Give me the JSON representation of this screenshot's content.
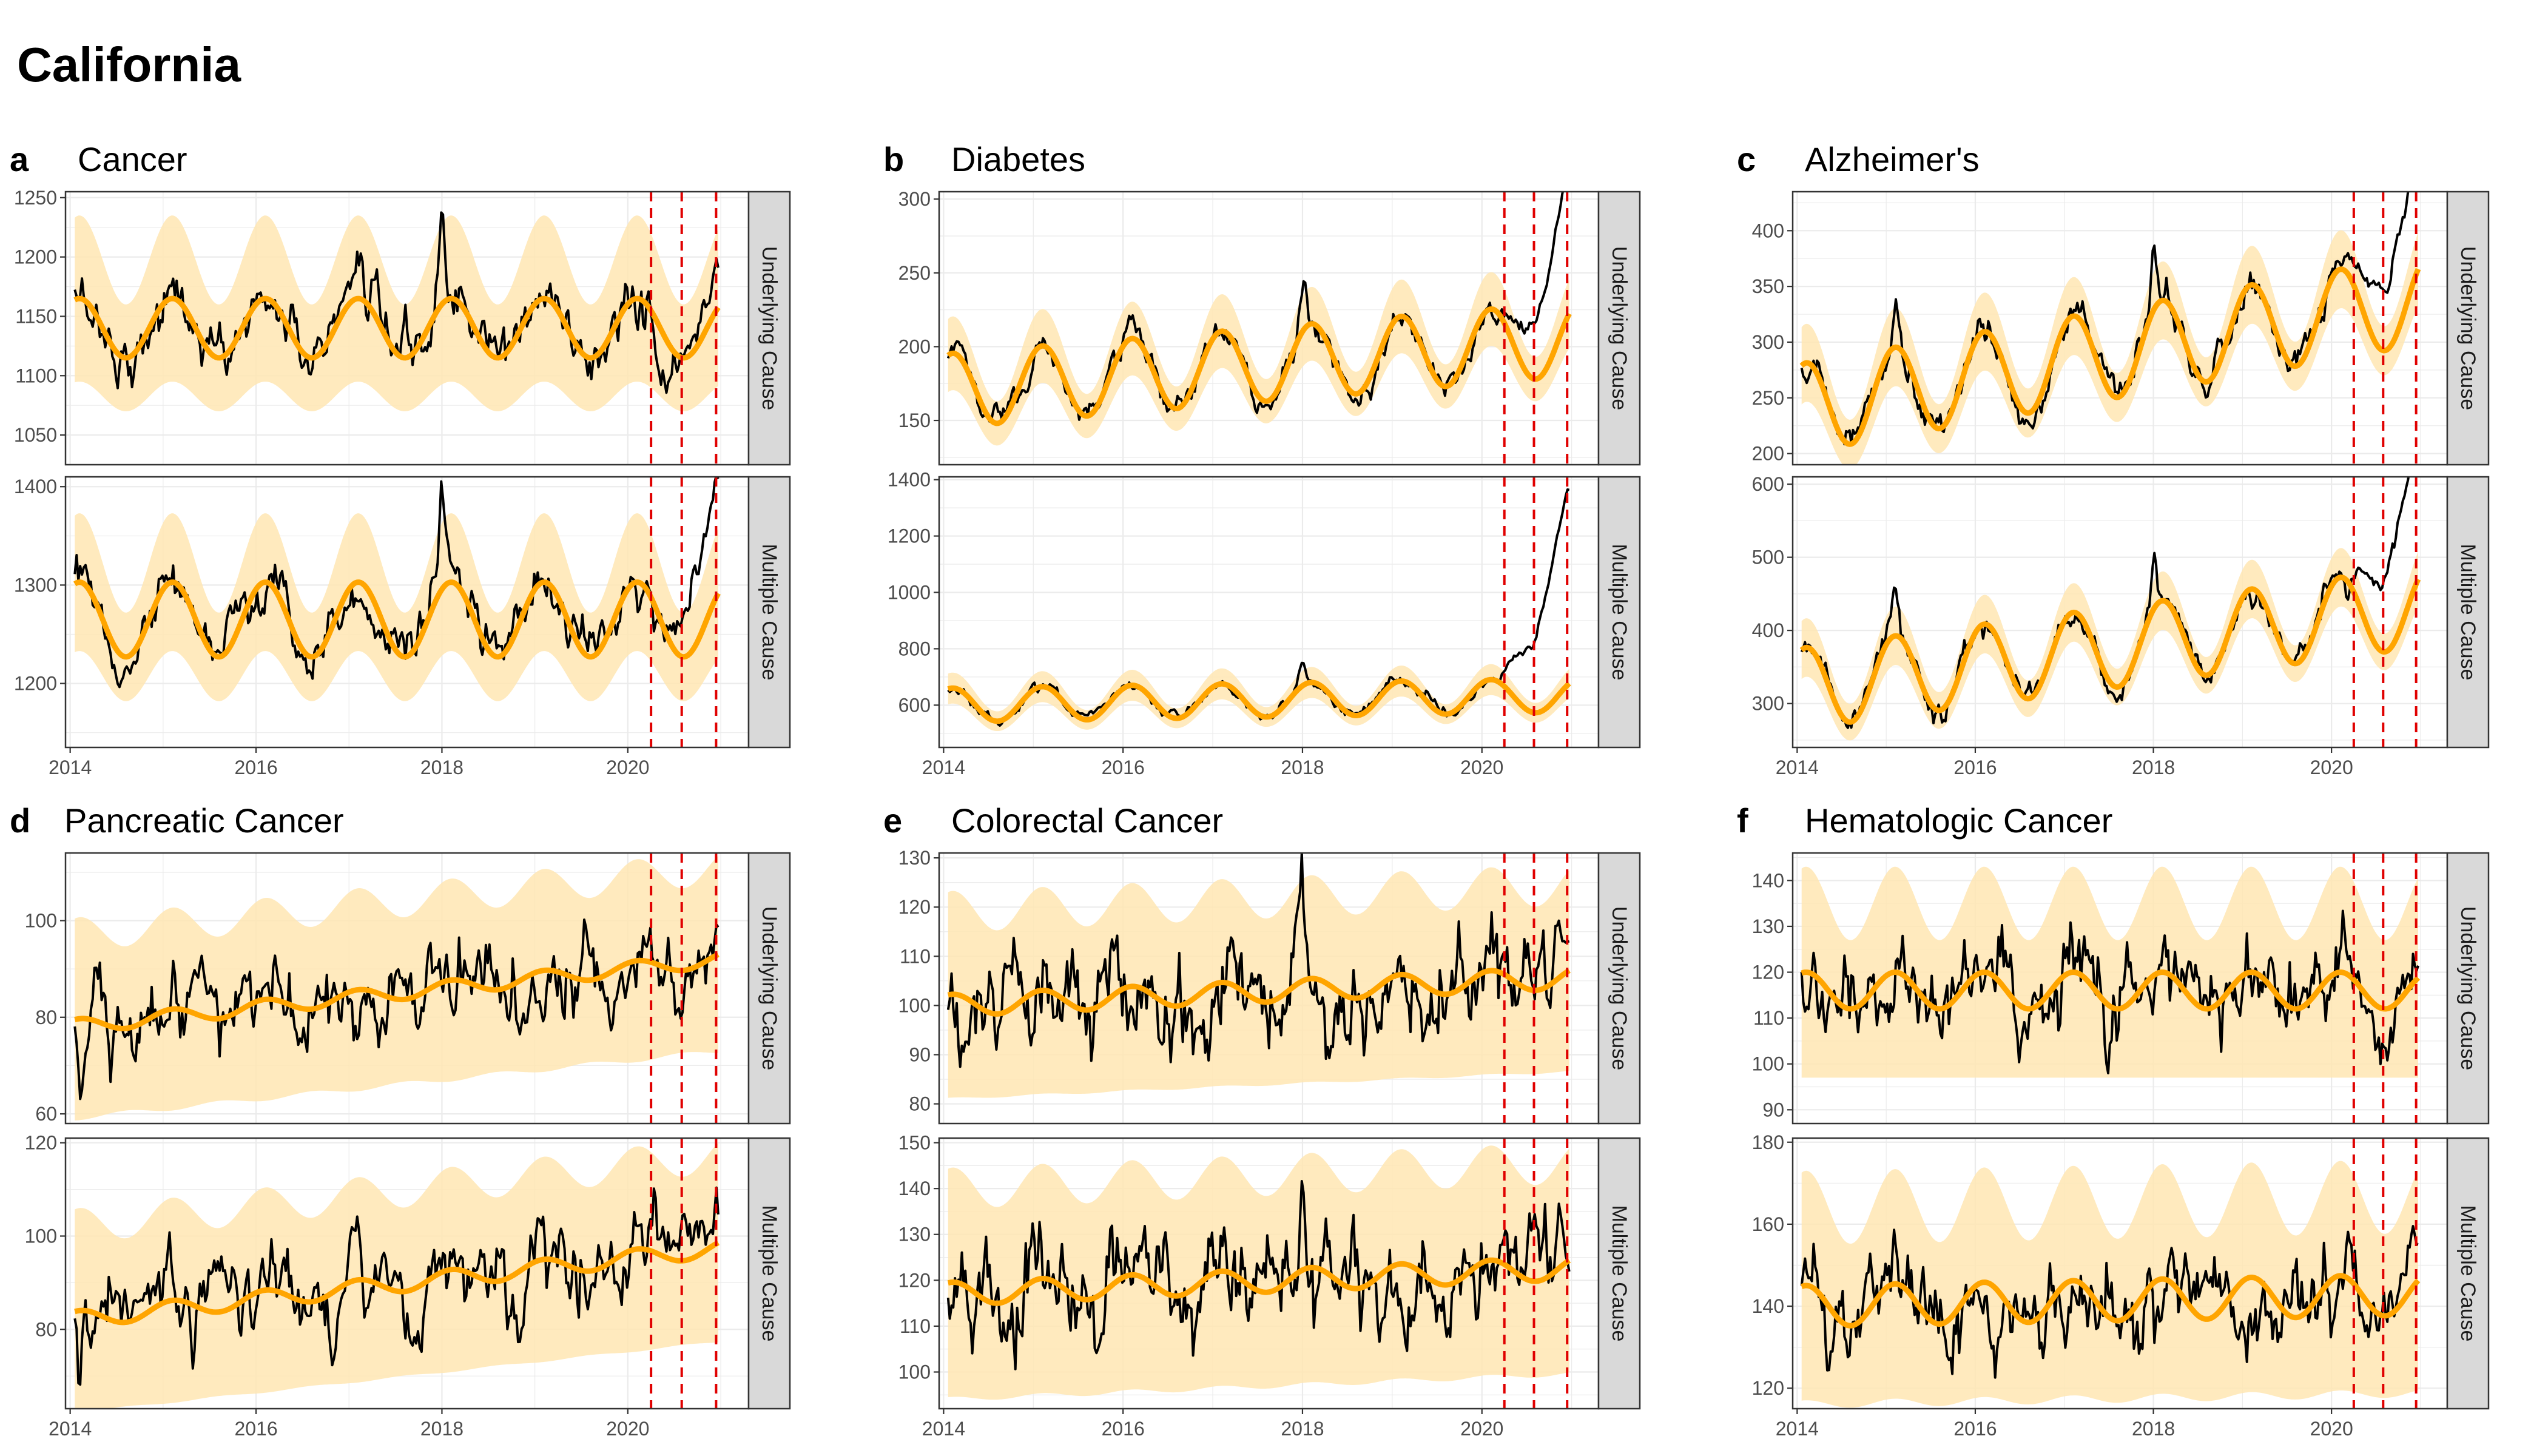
{
  "figure": {
    "title": "California",
    "x_tick_labels": [
      "2014",
      "2016",
      "2018",
      "2020"
    ]
  },
  "colors": {
    "observed": "#000000",
    "expected": "#ffa500",
    "band": "#ffe6b3",
    "vline": "#e00000",
    "strip_bg": "#d9d9d9"
  },
  "chart_data": [
    {
      "letter": "a",
      "title": "Cancer",
      "type": "line",
      "xlim": [
        2013.95,
        2021.3
      ],
      "vlines": [
        2020.25,
        2020.58,
        2020.95
      ],
      "facets": [
        {
          "strip": "Underlying Cause",
          "ylim": [
            1025,
            1255
          ],
          "yticks": [
            1050,
            1100,
            1150,
            1200,
            1250
          ],
          "expected": {
            "base": 1140,
            "trend": 0,
            "amp": 25,
            "phase": 0.1
          },
          "band_half": [
            45,
            70
          ],
          "noise": 12,
          "spikes": [
            [
              2018.0,
              75
            ],
            [
              2017.2,
              -30
            ]
          ],
          "covid_excess": [
            [
              2020.3,
              -40
            ],
            [
              2020.95,
              35
            ]
          ]
        },
        {
          "strip": "Multiple Cause",
          "ylim": [
            1135,
            1410
          ],
          "yticks": [
            1200,
            1300,
            1400
          ],
          "expected": {
            "base": 1265,
            "trend": 0,
            "amp": 38,
            "phase": 0.1
          },
          "band_half": [
            45,
            70
          ],
          "noise": 14,
          "spikes": [
            [
              2018.0,
              95
            ],
            [
              2017.2,
              -40
            ]
          ],
          "covid_excess": [
            [
              2020.3,
              -20
            ],
            [
              2020.95,
              120
            ]
          ]
        }
      ]
    },
    {
      "letter": "b",
      "title": "Diabetes",
      "type": "line",
      "xlim": [
        2013.95,
        2021.3
      ],
      "vlines": [
        2020.25,
        2020.58,
        2020.95
      ],
      "facets": [
        {
          "strip": "Underlying Cause",
          "ylim": [
            120,
            305
          ],
          "yticks": [
            150,
            200,
            250,
            300
          ],
          "expected": {
            "base": 170,
            "trend": 5,
            "amp": 25,
            "phase": 0.1
          },
          "band_half": [
            15,
            25
          ],
          "noise": 5,
          "spikes": [
            [
              2018.0,
              30
            ]
          ],
          "covid_excess": [
            [
              2020.3,
              15
            ],
            [
              2020.58,
              35
            ],
            [
              2020.95,
              95
            ]
          ]
        },
        {
          "strip": "Multiple Cause",
          "ylim": [
            450,
            1410
          ],
          "yticks": [
            600,
            800,
            1000,
            1200,
            1400
          ],
          "expected": {
            "base": 600,
            "trend": 5,
            "amp": 60,
            "phase": 0.1
          },
          "band_half": [
            35,
            55
          ],
          "noise": 10,
          "spikes": [
            [
              2018.0,
              80
            ]
          ],
          "covid_excess": [
            [
              2020.3,
              120
            ],
            [
              2020.58,
              250
            ],
            [
              2020.95,
              700
            ]
          ]
        }
      ]
    },
    {
      "letter": "c",
      "title": "Alzheimer's",
      "type": "line",
      "xlim": [
        2013.95,
        2021.3
      ],
      "vlines": [
        2020.25,
        2020.58,
        2020.95
      ],
      "facets": [
        {
          "strip": "Underlying Cause",
          "ylim": [
            190,
            435
          ],
          "yticks": [
            200,
            250,
            300,
            350,
            400
          ],
          "expected": {
            "base": 240,
            "trend": 14,
            "amp": 40,
            "phase": 0.1
          },
          "band_half": [
            22,
            35
          ],
          "noise": 8,
          "spikes": [
            [
              2018.0,
              55
            ],
            [
              2015.1,
              35
            ]
          ],
          "covid_excess": [
            [
              2020.3,
              25
            ],
            [
              2020.58,
              55
            ],
            [
              2020.95,
              100
            ]
          ]
        },
        {
          "strip": "Multiple Cause",
          "ylim": [
            240,
            610
          ],
          "yticks": [
            300,
            400,
            500,
            600
          ],
          "expected": {
            "base": 320,
            "trend": 16,
            "amp": 55,
            "phase": 0.1
          },
          "band_half": [
            25,
            40
          ],
          "noise": 10,
          "spikes": [
            [
              2018.0,
              70
            ],
            [
              2015.1,
              45
            ]
          ],
          "covid_excess": [
            [
              2020.3,
              50
            ],
            [
              2020.58,
              95
            ],
            [
              2020.95,
              200
            ]
          ]
        }
      ]
    },
    {
      "letter": "d",
      "title": "Pancreatic Cancer",
      "type": "line",
      "xlim": [
        2013.95,
        2021.3
      ],
      "vlines": [
        2020.25,
        2020.58,
        2020.95
      ],
      "facets": [
        {
          "strip": "Underlying Cause",
          "ylim": [
            58,
            114
          ],
          "yticks": [
            60,
            80,
            100
          ],
          "expected": {
            "base": 78,
            "trend": 2.0,
            "amp": 1.5,
            "phase": 0.1
          },
          "band_half": [
            17,
            21
          ],
          "noise": 4.5,
          "spikes": [
            [
              2014.1,
              -12
            ]
          ],
          "covid_excess": [
            [
              2020.95,
              3
            ]
          ]
        },
        {
          "strip": "Multiple Cause",
          "ylim": [
            63,
            121
          ],
          "yticks": [
            80,
            100,
            120
          ],
          "expected": {
            "base": 82,
            "trend": 2.2,
            "amp": 1.8,
            "phase": 0.1
          },
          "band_half": [
            18,
            22
          ],
          "noise": 5,
          "spikes": [
            [
              2014.1,
              -13
            ]
          ],
          "covid_excess": [
            [
              2020.95,
              6
            ]
          ]
        }
      ]
    },
    {
      "letter": "e",
      "title": "Colorectal Cancer",
      "type": "line",
      "xlim": [
        2013.95,
        2021.3
      ],
      "vlines": [
        2020.25,
        2020.58,
        2020.95
      ],
      "facets": [
        {
          "strip": "Underlying Cause",
          "ylim": [
            76,
            131
          ],
          "yticks": [
            80,
            90,
            100,
            110,
            120,
            130
          ],
          "expected": {
            "base": 100,
            "trend": 0.8,
            "amp": 2.2,
            "phase": 0.1
          },
          "band_half": [
            17,
            21
          ],
          "noise": 5.5,
          "spikes": [
            [
              2018.0,
              19
            ]
          ],
          "covid_excess": [
            [
              2020.95,
              2
            ]
          ]
        },
        {
          "strip": "Multiple Cause",
          "ylim": [
            92,
            151
          ],
          "yticks": [
            100,
            110,
            120,
            130,
            140,
            150
          ],
          "expected": {
            "base": 117,
            "trend": 0.8,
            "amp": 2.5,
            "phase": 0.1
          },
          "band_half": [
            21,
            25
          ],
          "noise": 6,
          "spikes": [
            [
              2018.0,
              20
            ]
          ],
          "covid_excess": [
            [
              2020.95,
              3
            ]
          ]
        }
      ]
    },
    {
      "letter": "f",
      "title": "Hematologic Cancer",
      "type": "line",
      "xlim": [
        2013.95,
        2021.3
      ],
      "vlines": [
        2020.25,
        2020.58,
        2020.95
      ],
      "facets": [
        {
          "strip": "Underlying Cause",
          "ylim": [
            87,
            146
          ],
          "yticks": [
            90,
            100,
            110,
            120,
            130,
            140
          ],
          "expected": {
            "base": 116,
            "trend": 0,
            "amp": 4,
            "phase": 0.1
          },
          "band_half": [
            15,
            23
          ],
          "noise": 5,
          "spikes": [
            [
              2014.2,
              5
            ]
          ],
          "covid_excess": [
            [
              2020.4,
              -6
            ],
            [
              2020.95,
              2
            ]
          ]
        },
        {
          "strip": "Multiple Cause",
          "ylim": [
            115,
            181
          ],
          "yticks": [
            120,
            140,
            160,
            180
          ],
          "expected": {
            "base": 140,
            "trend": 0.4,
            "amp": 5,
            "phase": 0.1
          },
          "band_half": [
            20,
            28
          ],
          "noise": 6,
          "spikes": [
            [
              2018.2,
              12
            ]
          ],
          "covid_excess": [
            [
              2020.4,
              -5
            ],
            [
              2020.95,
              10
            ]
          ]
        }
      ]
    }
  ]
}
